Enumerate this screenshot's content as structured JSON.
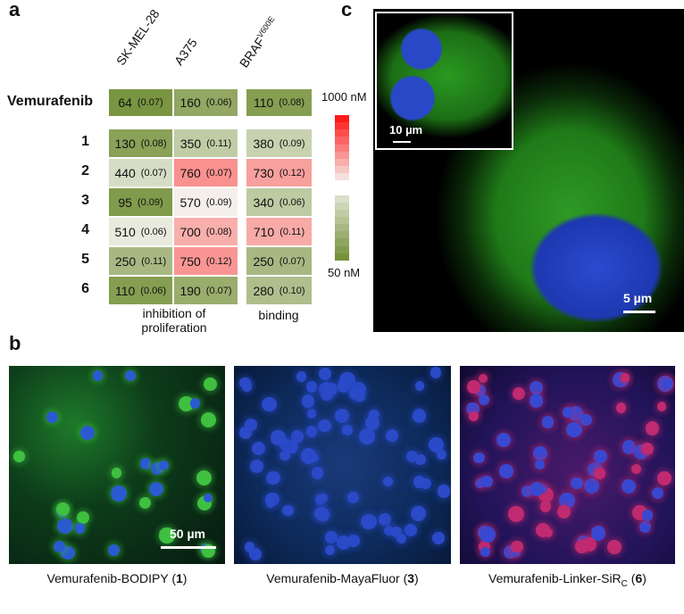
{
  "panels": {
    "a": "a",
    "b": "b",
    "c": "c"
  },
  "table": {
    "columns": [
      "SK-MEL-28",
      "A375",
      "BRAF"
    ],
    "column_superscript": "V600E",
    "rows": [
      {
        "label": "Vemurafenib",
        "values": [
          [
            64,
            "(0.07)"
          ],
          [
            160,
            "(0.06)"
          ],
          [
            110,
            "(0.08)"
          ]
        ]
      },
      {
        "label": "1",
        "values": [
          [
            130,
            "(0.08)"
          ],
          [
            350,
            "(0.11)"
          ],
          [
            380,
            "(0.09)"
          ]
        ]
      },
      {
        "label": "2",
        "values": [
          [
            440,
            "(0.07)"
          ],
          [
            760,
            "(0.07)"
          ],
          [
            730,
            "(0.12)"
          ]
        ]
      },
      {
        "label": "3",
        "values": [
          [
            95,
            "(0.09)"
          ],
          [
            570,
            "(0.09)"
          ],
          [
            340,
            "(0.06)"
          ]
        ]
      },
      {
        "label": "4",
        "values": [
          [
            510,
            "(0.06)"
          ],
          [
            700,
            "(0.08)"
          ],
          [
            710,
            "(0.11)"
          ]
        ]
      },
      {
        "label": "5",
        "values": [
          [
            250,
            "(0.11)"
          ],
          [
            750,
            "(0.12)"
          ],
          [
            250,
            "(0.07)"
          ]
        ]
      },
      {
        "label": "6",
        "values": [
          [
            110,
            "(0.06)"
          ],
          [
            190,
            "(0.07)"
          ],
          [
            280,
            "(0.10)"
          ]
        ]
      }
    ],
    "group_labels": {
      "proliferation": "inhibition of proliferation",
      "binding": "binding"
    }
  },
  "color_scale": {
    "max_label": "1000 nM",
    "min_label": "50 nM",
    "min": 50,
    "max": 1000,
    "low_color": "#76923c",
    "mid_color": "#f4f4f0",
    "high_color": "#ff1a1a"
  },
  "panel_b": {
    "images": [
      {
        "caption": "Vemurafenib-BODIPY (",
        "bold": "1",
        "end": ")"
      },
      {
        "caption": "Vemurafenib-MayaFluor (",
        "bold": "3",
        "end": ")"
      },
      {
        "caption": "Vemurafenib-Linker-SiR",
        "sub": "C",
        "mid": " (",
        "bold": "6",
        "end": ")"
      }
    ],
    "scale_bar": "50 µm"
  },
  "panel_c": {
    "scale_bar": "5 µm",
    "inset_scale_bar": "10 µm"
  }
}
